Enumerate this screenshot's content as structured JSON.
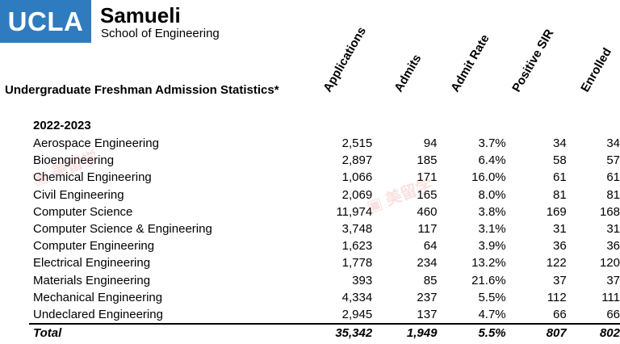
{
  "header": {
    "logo_text": "UCLA",
    "brand_name": "Samueli",
    "brand_sub": "School of Engineering"
  },
  "title": "Undergraduate Freshman Admission Statistics*",
  "columns": [
    "Applications",
    "Admits",
    "Admit Rate",
    "Positive SIR",
    "Enrolled"
  ],
  "year_label": "2022-2023",
  "rows": [
    {
      "name": "Aerospace Engineering",
      "applications": "2,515",
      "admits": "94",
      "rate": "3.7%",
      "sir": "34",
      "enrolled": "34"
    },
    {
      "name": "Bioengineering",
      "applications": "2,897",
      "admits": "185",
      "rate": "6.4%",
      "sir": "58",
      "enrolled": "57"
    },
    {
      "name": "Chemical Engineering",
      "applications": "1,066",
      "admits": "171",
      "rate": "16.0%",
      "sir": "61",
      "enrolled": "61"
    },
    {
      "name": "Civil Engineering",
      "applications": "2,069",
      "admits": "165",
      "rate": "8.0%",
      "sir": "81",
      "enrolled": "81"
    },
    {
      "name": "Computer Science",
      "applications": "11,974",
      "admits": "460",
      "rate": "3.8%",
      "sir": "169",
      "enrolled": "168"
    },
    {
      "name": "Computer Science & Engineering",
      "applications": "3,748",
      "admits": "117",
      "rate": "3.1%",
      "sir": "31",
      "enrolled": "31"
    },
    {
      "name": "Computer Engineering",
      "applications": "1,623",
      "admits": "64",
      "rate": "3.9%",
      "sir": "36",
      "enrolled": "36"
    },
    {
      "name": "Electrical Engineering",
      "applications": "1,778",
      "admits": "234",
      "rate": "13.2%",
      "sir": "122",
      "enrolled": "120"
    },
    {
      "name": "Materials Engineering",
      "applications": "393",
      "admits": "85",
      "rate": "21.6%",
      "sir": "37",
      "enrolled": "37"
    },
    {
      "name": "Mechanical Engineering",
      "applications": "4,334",
      "admits": "237",
      "rate": "5.5%",
      "sir": "112",
      "enrolled": "111"
    },
    {
      "name": "Undeclared Engineering",
      "applications": "2,945",
      "admits": "137",
      "rate": "4.7%",
      "sir": "66",
      "enrolled": "66"
    }
  ],
  "total": {
    "name": "Total",
    "applications": "35,342",
    "admits": "1,949",
    "rate": "5.5%",
    "sir": "807",
    "enrolled": "802"
  },
  "colors": {
    "logo_bg": "#2f7bbf",
    "watermark": "#dc5a5a"
  }
}
